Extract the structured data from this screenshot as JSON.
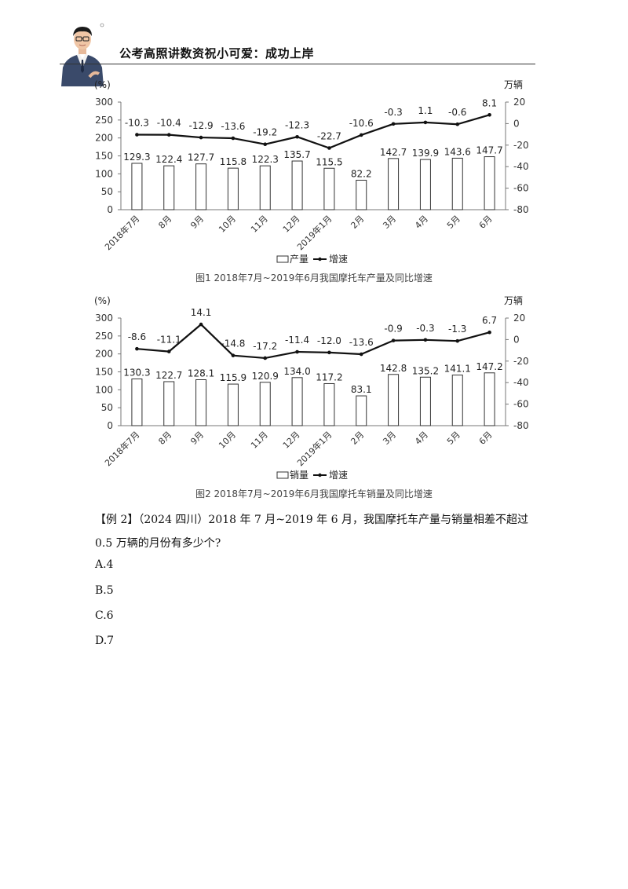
{
  "header": {
    "title": "公考高照讲数资祝小可爱：成功上岸"
  },
  "chart_data": [
    {
      "type": "bar",
      "caption": "图1  2018年7月~2019年6月我国摩托车产量及同比增速",
      "left_axis_label": "(%)",
      "right_axis_label": "万辆",
      "left_ticks": [
        300,
        250,
        200,
        150,
        100,
        50,
        0
      ],
      "right_ticks": [
        20,
        0,
        -20,
        -40,
        -60,
        -80
      ],
      "left_ylim": [
        0,
        300
      ],
      "right_ylim": [
        -80,
        20
      ],
      "categories": [
        "2018年7月",
        "8月",
        "9月",
        "10月",
        "11月",
        "12月",
        "2019年1月",
        "2月",
        "3月",
        "4月",
        "5月",
        "6月"
      ],
      "series": [
        {
          "name": "产量",
          "kind": "bar",
          "axis": "left",
          "values": [
            129.3,
            122.4,
            127.7,
            115.8,
            122.3,
            135.7,
            115.5,
            82.2,
            142.7,
            139.9,
            143.6,
            147.7
          ]
        },
        {
          "name": "增速",
          "kind": "line",
          "axis": "right",
          "values": [
            -10.3,
            -10.4,
            -12.9,
            -13.6,
            -19.2,
            -12.3,
            -22.7,
            -10.6,
            -0.3,
            1.1,
            -0.6,
            8.1
          ]
        }
      ],
      "bar_labels": [
        "129.3",
        "122.4",
        "127.7",
        "115.8",
        "122.3",
        "135.7",
        "115.5",
        "82.2",
        "142.7",
        "139.9",
        "143.6",
        "147.7"
      ],
      "line_labels": [
        "-10.3",
        "-10.4",
        "-12.9",
        "-13.6",
        "-19.2",
        "-12.3",
        "-22.7",
        "-10.6",
        "-0.3",
        "1.1",
        "-0.6",
        "8.1"
      ],
      "legend": [
        "产量",
        "增速"
      ],
      "legend_position": "bottom"
    },
    {
      "type": "bar",
      "caption": "图2  2018年7月~2019年6月我国摩托车销量及同比增速",
      "left_axis_label": "(%)",
      "right_axis_label": "万辆",
      "left_ticks": [
        300,
        250,
        200,
        150,
        100,
        50,
        0
      ],
      "right_ticks": [
        20,
        0,
        -20,
        -40,
        -60,
        -80
      ],
      "left_ylim": [
        0,
        300
      ],
      "right_ylim": [
        -80,
        20
      ],
      "categories": [
        "2018年7月",
        "8月",
        "9月",
        "10月",
        "11月",
        "12月",
        "2019年1月",
        "2月",
        "3月",
        "4月",
        "5月",
        "6月"
      ],
      "series": [
        {
          "name": "销量",
          "kind": "bar",
          "axis": "left",
          "values": [
            130.3,
            122.7,
            128.1,
            115.9,
            120.9,
            134.0,
            117.2,
            83.1,
            142.8,
            135.2,
            141.1,
            147.2
          ]
        },
        {
          "name": "增速",
          "kind": "line",
          "axis": "right",
          "values": [
            -8.6,
            -11.1,
            14.1,
            -14.8,
            -17.2,
            -11.4,
            -12.0,
            -13.6,
            -0.9,
            -0.3,
            -1.3,
            6.7
          ]
        }
      ],
      "bar_labels": [
        "130.3",
        "122.7",
        "128.1",
        "115.9",
        "120.9",
        "134.0",
        "117.2",
        "83.1",
        "142.8",
        "135.2",
        "141.1",
        "147.2"
      ],
      "line_labels": [
        "-8.6",
        "-11.1",
        "14.1",
        "-14.8",
        "-17.2",
        "-11.4",
        "-12.0",
        "-13.6",
        "-0.9",
        "-0.3",
        "-1.3",
        "6.7"
      ],
      "legend": [
        "销量",
        "增速"
      ],
      "legend_position": "bottom"
    }
  ],
  "question": {
    "text": "【例 2】（2024 四川）2018 年 7 月~2019 年 6 月，我国摩托车产量与销量相差不超过 0.5 万辆的月份有多少个?",
    "options": [
      "A.4",
      "B.5",
      "C.6",
      "D.7"
    ]
  }
}
